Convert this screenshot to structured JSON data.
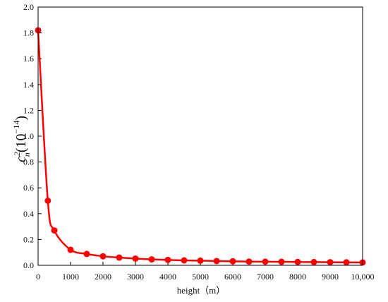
{
  "chart_data": {
    "type": "line",
    "xlabel": "height（m）",
    "ylabel_base": "c",
    "ylabel_sup": "2",
    "ylabel_sub": "n",
    "ylabel_tail": "(10",
    "ylabel_exp": "−14",
    "ylabel_close": ")",
    "xlim": [
      0,
      10000
    ],
    "ylim": [
      0,
      2.0
    ],
    "x_ticks": [
      0,
      1000,
      2000,
      3000,
      4000,
      5000,
      6000,
      7000,
      8000,
      9000,
      10000
    ],
    "x_tick_labels": [
      "0",
      "1000",
      "2000",
      "3000",
      "4000",
      "5000",
      "6000",
      "7000",
      "8000",
      "9000",
      "10,000"
    ],
    "y_ticks": [
      0,
      0.2,
      0.4,
      0.6,
      0.8,
      1.0,
      1.2,
      1.4,
      1.6,
      1.8,
      2.0
    ],
    "y_tick_labels": [
      "0.0",
      "0.2",
      "0.4",
      "0.6",
      "0.8",
      "1.0",
      "1.2",
      "1.4",
      "1.6",
      "1.8",
      "2.0"
    ],
    "grid": false,
    "series": [
      {
        "color": "#ff0000",
        "x": [
          0,
          300,
          500,
          1000,
          1500,
          2000,
          2500,
          3000,
          3500,
          4000,
          4500,
          5000,
          5500,
          6000,
          6500,
          7000,
          7500,
          8000,
          8500,
          9000,
          9500,
          10000
        ],
        "y": [
          1.82,
          0.5,
          0.27,
          0.12,
          0.088,
          0.07,
          0.06,
          0.052,
          0.046,
          0.042,
          0.038,
          0.036,
          0.033,
          0.031,
          0.029,
          0.028,
          0.027,
          0.026,
          0.025,
          0.024,
          0.023,
          0.022
        ]
      }
    ]
  }
}
